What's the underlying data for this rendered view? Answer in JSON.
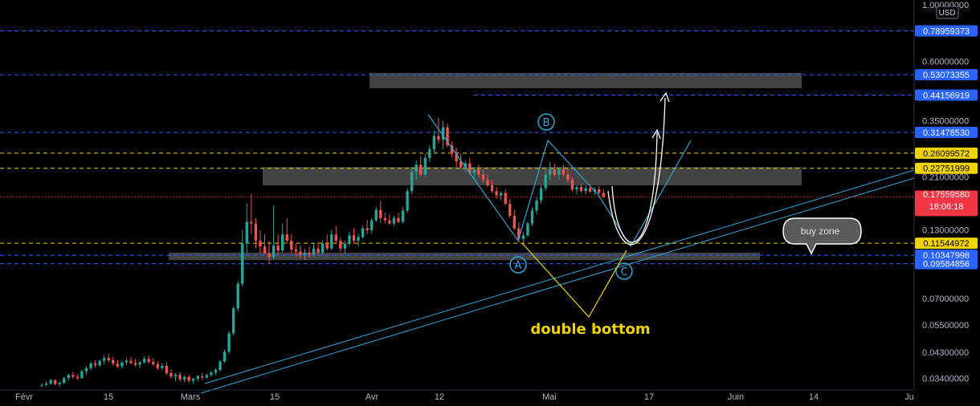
{
  "currency": "USD",
  "chart_data": {
    "type": "candlestick",
    "y_scale": "log",
    "ylim": [
      0.031,
      1.0
    ],
    "y_ticks": [
      "1.00000000",
      "0.60000000",
      "0.35000000",
      "0.21000000",
      "0.13000000",
      "0.07000000",
      "0.05500000",
      "0.04300000",
      "0.03400000"
    ],
    "x_ticks": [
      "Févr",
      "15",
      "Mars",
      "15",
      "Avr",
      "12",
      "Mai",
      "17",
      "Juin",
      "14",
      "Ju"
    ],
    "price_lines": [
      {
        "value": "0.78959373",
        "color": "#2962ff",
        "style": "dashed"
      },
      {
        "value": "0.53073355",
        "color": "#2962ff",
        "style": "dashed"
      },
      {
        "value": "0.44156919",
        "color": "#2962ff",
        "style": "dashed"
      },
      {
        "value": "0.31478530",
        "color": "#2962ff",
        "style": "dashed"
      },
      {
        "value": "0.26099572",
        "color": "#f0d400",
        "style": "dashed"
      },
      {
        "value": "0.22751999",
        "color": "#f0d400",
        "style": "dashed"
      },
      {
        "value": "0.11544972",
        "color": "#f0d400",
        "style": "dashed"
      },
      {
        "value": "0.10347998",
        "color": "#2962ff",
        "style": "dashed"
      },
      {
        "value": "0.09584856",
        "color": "#2962ff",
        "style": "dashed"
      }
    ],
    "last_price": {
      "value": "0.17559580",
      "countdown": "18:06:18",
      "color": "#f23645"
    },
    "zones": [
      {
        "low": 0.47,
        "high": 0.54
      },
      {
        "low": 0.195,
        "high": 0.23
      },
      {
        "low": 0.099,
        "high": 0.106
      }
    ],
    "annotations": {
      "pattern_points": [
        "A",
        "B",
        "C"
      ],
      "double_bottom_label": "double bottom",
      "buy_zone_label": "buy zone"
    },
    "colors": {
      "up": "#26a69a",
      "down": "#ef5350",
      "pattern": "#2aa7dd",
      "text_yellow": "#f0d400",
      "zone": "#4a4a4a"
    },
    "candles": [
      [
        0.0318,
        0.0325,
        0.0312,
        0.032
      ],
      [
        0.032,
        0.033,
        0.0316,
        0.0324
      ],
      [
        0.0324,
        0.0338,
        0.032,
        0.0334
      ],
      [
        0.0334,
        0.0336,
        0.0318,
        0.0322
      ],
      [
        0.0322,
        0.033,
        0.0315,
        0.0326
      ],
      [
        0.0326,
        0.0345,
        0.0322,
        0.034
      ],
      [
        0.034,
        0.0355,
        0.0332,
        0.035
      ],
      [
        0.035,
        0.036,
        0.0338,
        0.0344
      ],
      [
        0.0344,
        0.0352,
        0.0334,
        0.034
      ],
      [
        0.034,
        0.0368,
        0.0338,
        0.0362
      ],
      [
        0.0362,
        0.0378,
        0.035,
        0.0372
      ],
      [
        0.0372,
        0.0395,
        0.0365,
        0.0388
      ],
      [
        0.0388,
        0.04,
        0.0375,
        0.0382
      ],
      [
        0.0382,
        0.0402,
        0.0376,
        0.0398
      ],
      [
        0.0398,
        0.042,
        0.0385,
        0.0408
      ],
      [
        0.0408,
        0.0425,
        0.0392,
        0.04
      ],
      [
        0.04,
        0.0412,
        0.038,
        0.0388
      ],
      [
        0.0388,
        0.04,
        0.0372,
        0.0378
      ],
      [
        0.0378,
        0.0398,
        0.037,
        0.0392
      ],
      [
        0.0392,
        0.0408,
        0.0382,
        0.0398
      ],
      [
        0.0398,
        0.0412,
        0.0385,
        0.039
      ],
      [
        0.039,
        0.0405,
        0.0378,
        0.0384
      ],
      [
        0.0384,
        0.0398,
        0.0372,
        0.0392
      ],
      [
        0.0392,
        0.0415,
        0.0388,
        0.0405
      ],
      [
        0.0405,
        0.0418,
        0.0388,
        0.0394
      ],
      [
        0.0394,
        0.0408,
        0.0378,
        0.0386
      ],
      [
        0.0386,
        0.0396,
        0.0366,
        0.0372
      ],
      [
        0.0372,
        0.039,
        0.0365,
        0.038
      ],
      [
        0.038,
        0.0394,
        0.035,
        0.0356
      ],
      [
        0.0356,
        0.0368,
        0.0338,
        0.0345
      ],
      [
        0.0345,
        0.0356,
        0.0332,
        0.035
      ],
      [
        0.035,
        0.036,
        0.033,
        0.0336
      ],
      [
        0.0336,
        0.0348,
        0.0328,
        0.0344
      ],
      [
        0.0344,
        0.0352,
        0.0326,
        0.0332
      ],
      [
        0.0332,
        0.0342,
        0.0322,
        0.0338
      ],
      [
        0.0338,
        0.035,
        0.033,
        0.0346
      ],
      [
        0.0346,
        0.0356,
        0.0334,
        0.0342
      ],
      [
        0.0342,
        0.0354,
        0.0336,
        0.035
      ],
      [
        0.035,
        0.0364,
        0.0344,
        0.0358
      ],
      [
        0.0358,
        0.0372,
        0.035,
        0.0366
      ],
      [
        0.0366,
        0.04,
        0.036,
        0.0395
      ],
      [
        0.0395,
        0.044,
        0.039,
        0.0432
      ],
      [
        0.0432,
        0.052,
        0.0425,
        0.051
      ],
      [
        0.051,
        0.065,
        0.05,
        0.064
      ],
      [
        0.064,
        0.082,
        0.062,
        0.08
      ],
      [
        0.08,
        0.13,
        0.078,
        0.115
      ],
      [
        0.115,
        0.165,
        0.105,
        0.14
      ],
      [
        0.14,
        0.18,
        0.125,
        0.138
      ],
      [
        0.138,
        0.145,
        0.11,
        0.118
      ],
      [
        0.118,
        0.13,
        0.105,
        0.112
      ],
      [
        0.112,
        0.125,
        0.105,
        0.105
      ],
      [
        0.105,
        0.118,
        0.096,
        0.102
      ],
      [
        0.102,
        0.162,
        0.1,
        0.113
      ],
      [
        0.113,
        0.125,
        0.104,
        0.108
      ],
      [
        0.108,
        0.138,
        0.106,
        0.125
      ],
      [
        0.125,
        0.145,
        0.115,
        0.118
      ],
      [
        0.118,
        0.125,
        0.106,
        0.109
      ],
      [
        0.109,
        0.115,
        0.102,
        0.107
      ],
      [
        0.107,
        0.113,
        0.1,
        0.104
      ],
      [
        0.104,
        0.11,
        0.099,
        0.106
      ],
      [
        0.106,
        0.112,
        0.101,
        0.104
      ],
      [
        0.104,
        0.115,
        0.102,
        0.11
      ],
      [
        0.11,
        0.117,
        0.104,
        0.106
      ],
      [
        0.106,
        0.118,
        0.104,
        0.115
      ],
      [
        0.115,
        0.125,
        0.108,
        0.11
      ],
      [
        0.11,
        0.13,
        0.108,
        0.125
      ],
      [
        0.125,
        0.135,
        0.115,
        0.118
      ],
      [
        0.118,
        0.122,
        0.107,
        0.11
      ],
      [
        0.11,
        0.118,
        0.105,
        0.115
      ],
      [
        0.115,
        0.128,
        0.112,
        0.124
      ],
      [
        0.124,
        0.132,
        0.115,
        0.118
      ],
      [
        0.118,
        0.126,
        0.112,
        0.122
      ],
      [
        0.122,
        0.135,
        0.12,
        0.132
      ],
      [
        0.132,
        0.142,
        0.125,
        0.13
      ],
      [
        0.13,
        0.145,
        0.126,
        0.142
      ],
      [
        0.142,
        0.16,
        0.14,
        0.156
      ],
      [
        0.156,
        0.17,
        0.138,
        0.145
      ],
      [
        0.145,
        0.152,
        0.138,
        0.142
      ],
      [
        0.142,
        0.15,
        0.136,
        0.138
      ],
      [
        0.138,
        0.148,
        0.135,
        0.145
      ],
      [
        0.145,
        0.152,
        0.138,
        0.14
      ],
      [
        0.14,
        0.16,
        0.138,
        0.155
      ],
      [
        0.155,
        0.19,
        0.152,
        0.185
      ],
      [
        0.185,
        0.23,
        0.18,
        0.22
      ],
      [
        0.22,
        0.245,
        0.205,
        0.235
      ],
      [
        0.235,
        0.255,
        0.21,
        0.215
      ],
      [
        0.215,
        0.26,
        0.21,
        0.25
      ],
      [
        0.25,
        0.28,
        0.24,
        0.27
      ],
      [
        0.27,
        0.32,
        0.26,
        0.305
      ],
      [
        0.305,
        0.36,
        0.285,
        0.295
      ],
      [
        0.295,
        0.35,
        0.27,
        0.33
      ],
      [
        0.33,
        0.34,
        0.275,
        0.28
      ],
      [
        0.28,
        0.29,
        0.25,
        0.26
      ],
      [
        0.26,
        0.275,
        0.23,
        0.242
      ],
      [
        0.242,
        0.26,
        0.225,
        0.23
      ],
      [
        0.23,
        0.245,
        0.22,
        0.238
      ],
      [
        0.238,
        0.25,
        0.215,
        0.218
      ],
      [
        0.218,
        0.23,
        0.208,
        0.225
      ],
      [
        0.225,
        0.235,
        0.21,
        0.215
      ],
      [
        0.215,
        0.225,
        0.2,
        0.205
      ],
      [
        0.205,
        0.215,
        0.192,
        0.195
      ],
      [
        0.195,
        0.205,
        0.182,
        0.185
      ],
      [
        0.185,
        0.192,
        0.172,
        0.178
      ],
      [
        0.178,
        0.185,
        0.17,
        0.182
      ],
      [
        0.182,
        0.188,
        0.162,
        0.165
      ],
      [
        0.165,
        0.172,
        0.145,
        0.148
      ],
      [
        0.148,
        0.156,
        0.13,
        0.132
      ],
      [
        0.132,
        0.14,
        0.116,
        0.12
      ],
      [
        0.12,
        0.128,
        0.113,
        0.124
      ],
      [
        0.124,
        0.14,
        0.122,
        0.138
      ],
      [
        0.138,
        0.16,
        0.135,
        0.155
      ],
      [
        0.155,
        0.175,
        0.15,
        0.17
      ],
      [
        0.17,
        0.195,
        0.165,
        0.19
      ],
      [
        0.19,
        0.225,
        0.185,
        0.215
      ],
      [
        0.215,
        0.24,
        0.205,
        0.225
      ],
      [
        0.225,
        0.238,
        0.21,
        0.215
      ],
      [
        0.215,
        0.23,
        0.205,
        0.225
      ],
      [
        0.225,
        0.235,
        0.21,
        0.215
      ],
      [
        0.215,
        0.225,
        0.2,
        0.205
      ],
      [
        0.205,
        0.21,
        0.185,
        0.188
      ],
      [
        0.188,
        0.195,
        0.18,
        0.192
      ],
      [
        0.192,
        0.198,
        0.182,
        0.185
      ],
      [
        0.185,
        0.195,
        0.18,
        0.19
      ],
      [
        0.19,
        0.196,
        0.182,
        0.184
      ],
      [
        0.184,
        0.192,
        0.178,
        0.188
      ],
      [
        0.188,
        0.194,
        0.18,
        0.182
      ],
      [
        0.182,
        0.188,
        0.174,
        0.1756
      ]
    ]
  }
}
